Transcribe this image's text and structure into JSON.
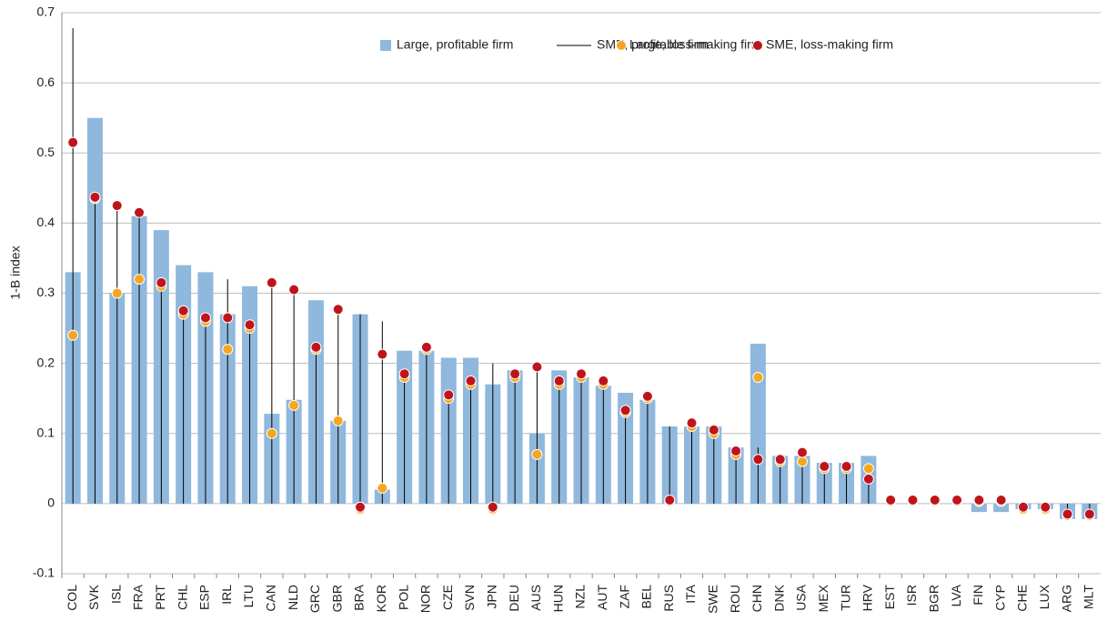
{
  "chart_data": {
    "type": "bar",
    "y_label": "1-B index",
    "categories": [
      "COL",
      "SVK",
      "ISL",
      "FRA",
      "PRT",
      "CHL",
      "ESP",
      "IRL",
      "LTU",
      "CAN",
      "NLD",
      "GRC",
      "GBR",
      "BRA",
      "KOR",
      "POL",
      "NOR",
      "CZE",
      "SVN",
      "JPN",
      "DEU",
      "AUS",
      "HUN",
      "NZL",
      "AUT",
      "ZAF",
      "BEL",
      "RUS",
      "ITA",
      "SWE",
      "ROU",
      "CHN",
      "DNK",
      "USA",
      "MEX",
      "TUR",
      "HRV",
      "EST",
      "ISR",
      "BGR",
      "LVA",
      "FIN",
      "CYP",
      "CHE",
      "LUX",
      "ARG",
      "MLT"
    ],
    "series": [
      {
        "name": "Large, profitable firm",
        "marker": "bar",
        "color": "#8fb8dc",
        "values": [
          0.33,
          0.55,
          0.3,
          0.41,
          0.39,
          0.34,
          0.33,
          0.27,
          0.31,
          0.128,
          0.148,
          0.29,
          0.118,
          0.27,
          0.02,
          0.218,
          0.218,
          0.208,
          0.208,
          0.17,
          0.19,
          0.1,
          0.19,
          0.18,
          0.168,
          0.158,
          0.148,
          0.11,
          0.11,
          0.11,
          0.08,
          0.228,
          0.068,
          0.068,
          0.058,
          0.058,
          0.068,
          0,
          0,
          0,
          0,
          -0.012,
          -0.012,
          -0.008,
          -0.008,
          -0.022,
          -0.022
        ]
      },
      {
        "name": "SME, profitable firm",
        "marker": "line",
        "color": "#000000",
        "values": [
          0.678,
          0.43,
          0.425,
          0.41,
          0.31,
          0.275,
          0.265,
          0.32,
          0.255,
          0.31,
          0.3,
          0.22,
          0.275,
          0.27,
          0.26,
          0.185,
          0.22,
          0.155,
          0.175,
          0.2,
          0.185,
          0.195,
          0.175,
          0.185,
          0.175,
          0.133,
          0.153,
          0.11,
          0.115,
          0.105,
          0.075,
          0.08,
          0.063,
          0.073,
          0.053,
          0.053,
          0.04,
          0.005,
          0.005,
          0.005,
          0.005,
          0.005,
          0.005,
          -0.005,
          -0.005,
          -0.015,
          -0.015
        ]
      },
      {
        "name": "Large, loss-making firm",
        "marker": "dot",
        "color": "#f5a623",
        "values": [
          0.24,
          0.435,
          0.3,
          0.32,
          0.31,
          0.27,
          0.26,
          0.22,
          0.25,
          0.1,
          0.14,
          0.22,
          0.118,
          -0.008,
          0.022,
          0.18,
          0.22,
          0.15,
          0.17,
          -0.008,
          0.18,
          0.07,
          0.17,
          0.18,
          0.17,
          0.13,
          0.15,
          0.003,
          0.11,
          0.1,
          0.07,
          0.18,
          0.06,
          0.06,
          0.05,
          0.05,
          0.05,
          0.003,
          0.003,
          0.003,
          0.003,
          0.003,
          0.003,
          -0.008,
          -0.008,
          -0.017,
          -0.017
        ]
      },
      {
        "name": "SME, loss-making firm",
        "marker": "dot",
        "color": "#c0141c",
        "values": [
          0.515,
          0.437,
          0.425,
          0.415,
          0.315,
          0.275,
          0.265,
          0.265,
          0.255,
          0.315,
          0.305,
          0.223,
          0.277,
          -0.005,
          0.213,
          0.185,
          0.223,
          0.155,
          0.175,
          -0.005,
          0.185,
          0.195,
          0.175,
          0.185,
          0.175,
          0.133,
          0.153,
          0.005,
          0.115,
          0.105,
          0.075,
          0.063,
          0.063,
          0.073,
          0.053,
          0.053,
          0.035,
          0.005,
          0.005,
          0.005,
          0.005,
          0.005,
          0.005,
          -0.005,
          -0.005,
          -0.015,
          -0.015
        ]
      }
    ],
    "ylim": [
      -0.1,
      0.7
    ],
    "yticks": [
      -0.1,
      0,
      0.1,
      0.2,
      0.3,
      0.4,
      0.5,
      0.6,
      0.7
    ],
    "grid": true,
    "legend": "top-right"
  }
}
